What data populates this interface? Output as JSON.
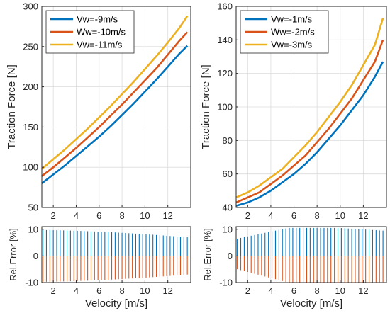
{
  "colors": {
    "series1": "#0072BD",
    "series2": "#D95319",
    "series3": "#EDB120"
  },
  "xlabel": "Velocity [m/s]",
  "chart_data": [
    {
      "type": "line",
      "ylabel": "Traction Force [N]",
      "xlim": [
        1,
        14
      ],
      "ylim": [
        50,
        300
      ],
      "xticks": [
        2,
        4,
        6,
        8,
        10,
        12
      ],
      "yticks": [
        50,
        100,
        150,
        200,
        250,
        300
      ],
      "grid": true,
      "legend": "top-left",
      "x": [
        1.0,
        2.0,
        3.0,
        4.0,
        5.0,
        6.0,
        7.0,
        8.0,
        9.0,
        10.0,
        11.0,
        12.0,
        13.0,
        13.7
      ],
      "series": [
        {
          "name": "Vw=-9m/s",
          "values": [
            80,
            91,
            102,
            114,
            126,
            138,
            151,
            165,
            179,
            194,
            209,
            225,
            241,
            251
          ]
        },
        {
          "name": "Ww=-10m/s",
          "values": [
            89,
            100,
            112,
            124,
            137,
            150,
            164,
            178,
            193,
            208,
            223,
            240,
            257,
            268
          ]
        },
        {
          "name": "Vw=-11m/s",
          "values": [
            98,
            110,
            122,
            135,
            148,
            162,
            176,
            191,
            206,
            222,
            238,
            255,
            273,
            288
          ]
        }
      ]
    },
    {
      "type": "line",
      "ylabel": "Traction Force [N]",
      "xlim": [
        1,
        14
      ],
      "ylim": [
        40,
        160
      ],
      "xticks": [
        2,
        4,
        6,
        8,
        10,
        12
      ],
      "yticks": [
        40,
        60,
        80,
        100,
        120,
        140,
        160
      ],
      "grid": true,
      "legend": "top-left",
      "x": [
        1.0,
        2.0,
        3.0,
        4.0,
        5.0,
        6.0,
        7.0,
        8.0,
        9.0,
        10.0,
        11.0,
        12.0,
        13.0,
        13.7
      ],
      "series": [
        {
          "name": "Vw=-1m/s",
          "values": [
            41,
            43,
            46,
            50,
            55,
            60,
            66,
            73,
            81,
            89,
            98,
            107,
            118,
            127
          ]
        },
        {
          "name": "Ww=-2m/s",
          "values": [
            43,
            46,
            49,
            54,
            59,
            65,
            71,
            79,
            87,
            96,
            105,
            116,
            127,
            140
          ]
        },
        {
          "name": "Vw=-3m/s",
          "values": [
            46,
            49,
            53,
            58,
            63,
            70,
            77,
            85,
            94,
            103,
            113,
            125,
            137,
            153
          ]
        }
      ]
    },
    {
      "type": "bar",
      "ylabel": "Rel.Error [%]",
      "xlim": [
        1,
        14
      ],
      "ylim": [
        -10,
        11
      ],
      "xticks": [
        2,
        4,
        6,
        8,
        10,
        12
      ],
      "yticks": [
        -10,
        0,
        10
      ],
      "grid": true,
      "x_range": [
        1.1,
        13.7
      ],
      "bar_count": 43,
      "series": [
        {
          "name": "",
          "start": 9.7,
          "end": 7.0
        },
        {
          "name": "",
          "start": -9.7,
          "end": -7.0
        }
      ]
    },
    {
      "type": "bar",
      "ylabel": "Rel.Error [%]",
      "xlim": [
        1,
        14
      ],
      "ylim": [
        -10,
        11
      ],
      "xticks": [
        2,
        4,
        6,
        8,
        10,
        12
      ],
      "yticks": [
        -10,
        0,
        10
      ],
      "grid": true,
      "x_range": [
        1.1,
        13.7
      ],
      "bar_count": 43,
      "series": [
        {
          "name": "",
          "start": 6.5,
          "end": 9.5,
          "peak": 10.5
        },
        {
          "name": "",
          "start": -5.0,
          "end": -9.8,
          "peak": -10.0
        }
      ]
    }
  ]
}
